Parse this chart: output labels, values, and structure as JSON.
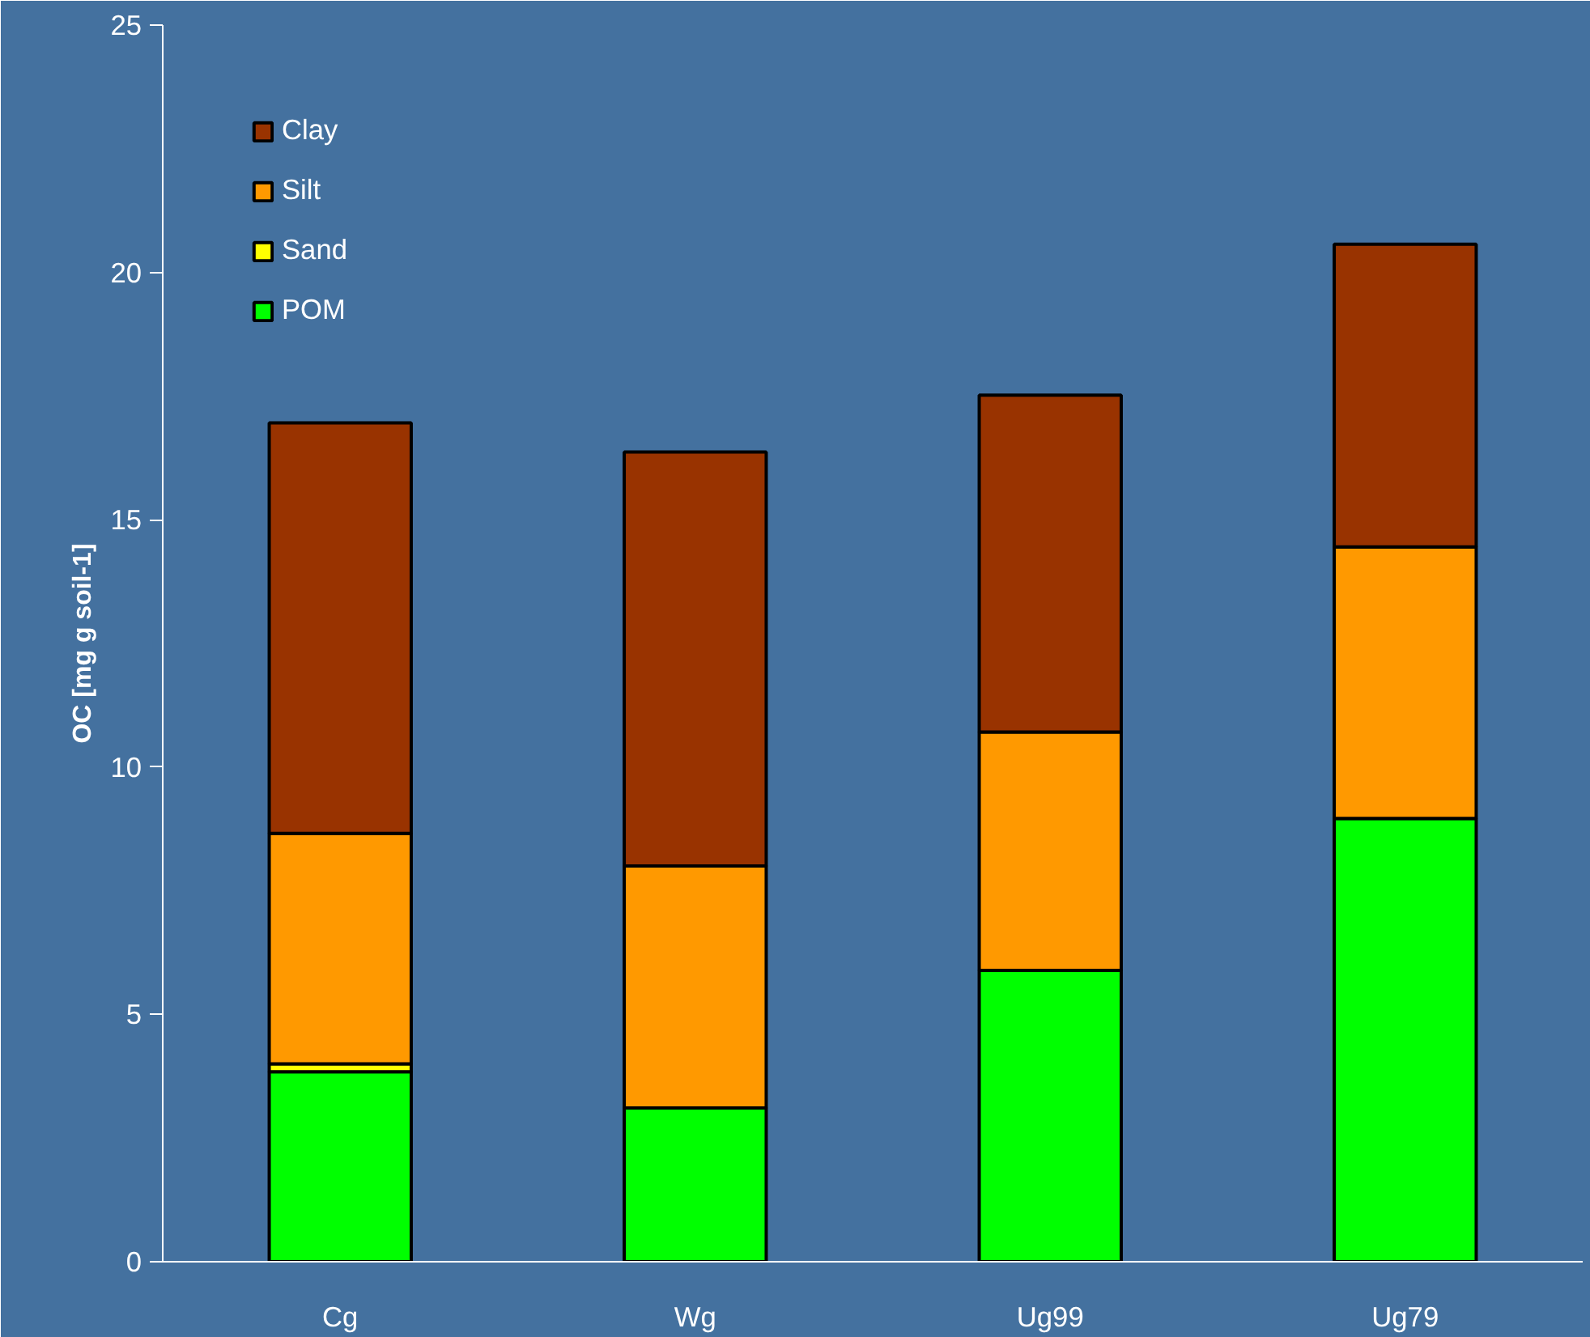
{
  "chart_data": {
    "type": "bar",
    "stacked": true,
    "ylabel": "OC [mg g soil-1]",
    "categories": [
      "Cg",
      "Wg",
      "Ug99",
      "Ug79"
    ],
    "series": [
      {
        "name": "POM",
        "color": "#00ff00",
        "values": [
          3.84,
          3.11,
          5.89,
          8.96
        ]
      },
      {
        "name": "Sand",
        "color": "#ffff00",
        "values": [
          0.16,
          0,
          null,
          null
        ]
      },
      {
        "name": "Silt",
        "color": "#ff9900",
        "values": [
          4.66,
          4.89,
          4.82,
          5.49
        ]
      },
      {
        "name": "Clay",
        "color": "#993300",
        "values": [
          8.3,
          8.37,
          6.81,
          6.12
        ]
      }
    ],
    "ylim": [
      0,
      25
    ],
    "yticks": [
      0,
      5,
      10,
      15,
      20,
      25
    ],
    "grid": false,
    "legend": "top left"
  }
}
